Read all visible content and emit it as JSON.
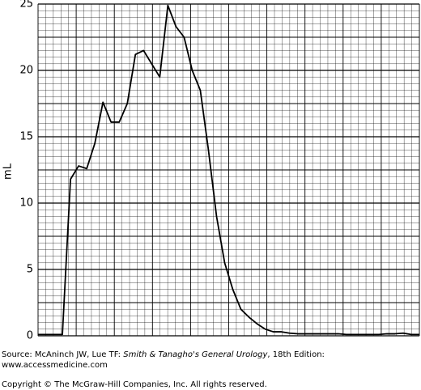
{
  "chart_data": {
    "type": "line",
    "ylabel": "mL",
    "values": [
      0.1,
      0.1,
      0.1,
      0.1,
      11.8,
      12.8,
      12.6,
      14.5,
      17.6,
      16.1,
      16.1,
      17.5,
      21.2,
      21.5,
      20.5,
      19.5,
      24.9,
      23.3,
      22.5,
      20,
      18.5,
      14,
      9,
      5.5,
      3.5,
      2,
      1.4,
      0.9,
      0.5,
      0.3,
      0.3,
      0.2,
      0.15,
      0.15,
      0.15,
      0.15,
      0.15,
      0.15,
      0.1,
      0.1,
      0.1,
      0.1,
      0.1,
      0.15,
      0.15,
      0.2,
      0.1,
      0.1
    ],
    "color": "#000000",
    "ylim": [
      0,
      25
    ],
    "yticks": [
      0,
      5,
      10,
      15,
      20,
      25
    ],
    "grid": true
  },
  "source": {
    "prefix": "Source: McAninch JW, Lue TF: ",
    "title": "Smith & Tanagho's General Urology",
    "suffix": ", 18th Edition:",
    "url": "www.accessmedicine.com"
  },
  "copyright": "Copyright © The McGraw-Hill Companies, Inc. All rights reserved."
}
